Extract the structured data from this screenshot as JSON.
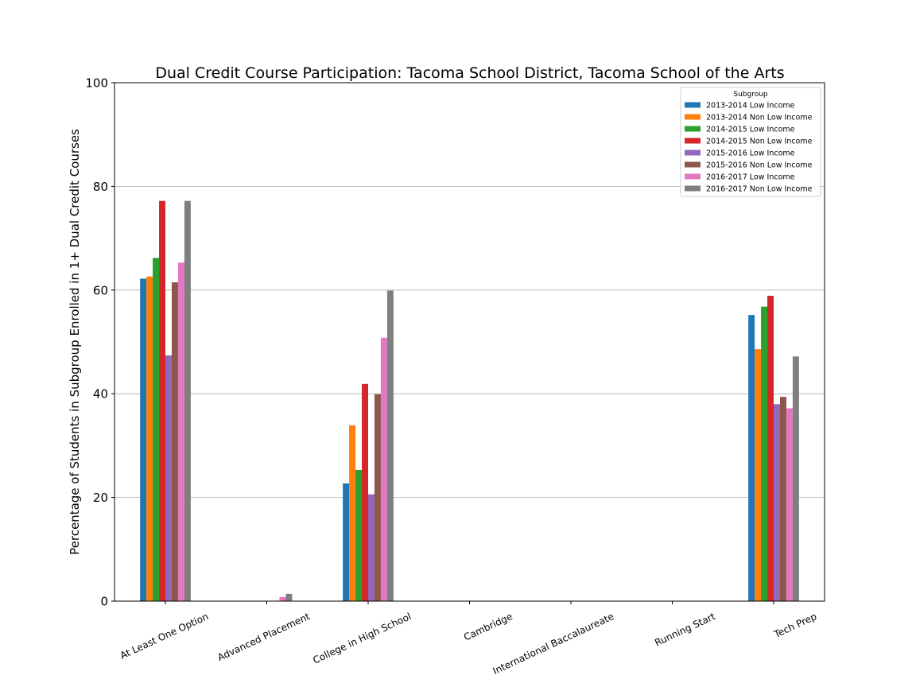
{
  "chart_data": {
    "type": "bar",
    "title": "Dual Credit Course Participation: Tacoma School District, Tacoma School of the Arts",
    "xlabel": "",
    "ylabel": "Percentage of Students in Subgroup Enrolled in 1+ Dual Credit Courses",
    "ylim": [
      0,
      100
    ],
    "yticks": [
      0,
      20,
      40,
      60,
      80,
      100
    ],
    "grid": "horizontal",
    "legend_title": "Subgroup",
    "legend_position": "top-right",
    "categories": [
      "At Least One Option",
      "Advanced Placement",
      "College in High School",
      "Cambridge",
      "International Baccalaureate",
      "Running Start",
      "Tech Prep"
    ],
    "series": [
      {
        "name": "2013-2014 Low Income",
        "color": "#1f77b4",
        "values": [
          62.2,
          0,
          22.7,
          0,
          0,
          0,
          55.2
        ]
      },
      {
        "name": "2013-2014 Non Low Income",
        "color": "#ff7f0e",
        "values": [
          62.6,
          0,
          33.9,
          0,
          0,
          0,
          48.6
        ]
      },
      {
        "name": "2014-2015 Low Income",
        "color": "#2ca02c",
        "values": [
          66.2,
          0,
          25.3,
          0,
          0,
          0,
          56.8
        ]
      },
      {
        "name": "2014-2015 Non Low Income",
        "color": "#d62728",
        "values": [
          77.2,
          0,
          41.9,
          0,
          0,
          0,
          58.9
        ]
      },
      {
        "name": "2015-2016 Low Income",
        "color": "#9467bd",
        "values": [
          47.4,
          0,
          20.6,
          0,
          0,
          0,
          38.0
        ]
      },
      {
        "name": "2015-2016 Non Low Income",
        "color": "#8c564b",
        "values": [
          61.5,
          0,
          39.9,
          0,
          0,
          0,
          39.4
        ]
      },
      {
        "name": "2016-2017 Low Income",
        "color": "#e377c2",
        "values": [
          65.3,
          0.8,
          50.8,
          0,
          0,
          0,
          37.2
        ]
      },
      {
        "name": "2016-2017 Non Low Income",
        "color": "#7f7f7f",
        "values": [
          77.2,
          1.4,
          59.9,
          0,
          0,
          0,
          47.2
        ]
      }
    ]
  }
}
